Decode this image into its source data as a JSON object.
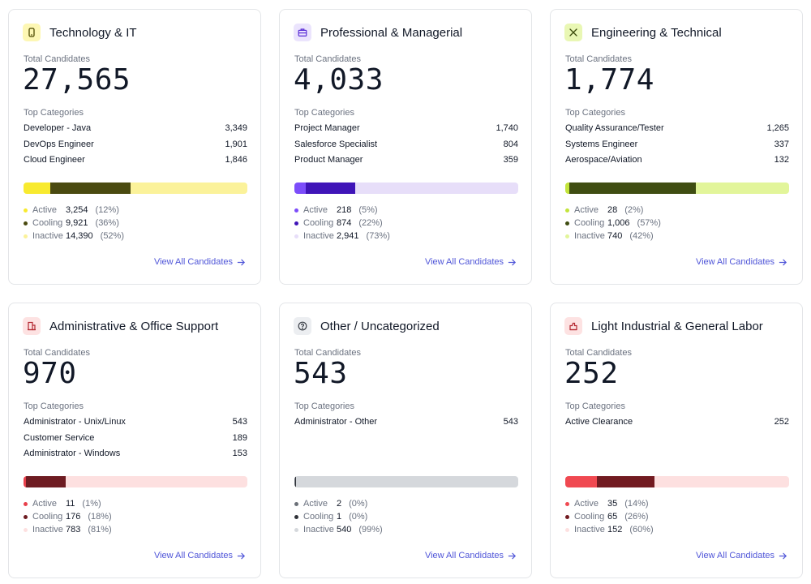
{
  "labels": {
    "total_candidates": "Total Candidates",
    "top_categories": "Top Categories",
    "view_all": "View All Candidates"
  },
  "cards": [
    {
      "title": "Technology & IT",
      "icon": "phone-icon",
      "icon_color": "#4d4a00",
      "icon_bg": "#fdf7b4",
      "total": "27,565",
      "categories": [
        {
          "name": "Developer - Java",
          "count": "3,349"
        },
        {
          "name": "DevOps Engineer",
          "count": "1,901"
        },
        {
          "name": "Cloud Engineer",
          "count": "1,846"
        }
      ],
      "status": [
        {
          "name": "Active",
          "count": "3,254",
          "pct": "(12%)",
          "fraction": 0.12,
          "color": "#f8ea2f"
        },
        {
          "name": "Cooling",
          "count": "9,921",
          "pct": "(36%)",
          "fraction": 0.36,
          "color": "#4a4a10"
        },
        {
          "name": "Inactive",
          "count": "14,390",
          "pct": "(52%)",
          "fraction": 0.52,
          "color": "#fbf29a"
        }
      ]
    },
    {
      "title": "Professional & Managerial",
      "icon": "briefcase-icon",
      "icon_color": "#5b2fd6",
      "icon_bg": "#ebe4fd",
      "total": "4,033",
      "categories": [
        {
          "name": "Project Manager",
          "count": "1,740"
        },
        {
          "name": "Salesforce Specialist",
          "count": "804"
        },
        {
          "name": "Product Manager",
          "count": "359"
        }
      ],
      "status": [
        {
          "name": "Active",
          "count": "218",
          "pct": "(5%)",
          "fraction": 0.05,
          "color": "#7c4dfa"
        },
        {
          "name": "Cooling",
          "count": "874",
          "pct": "(22%)",
          "fraction": 0.22,
          "color": "#3f14b8"
        },
        {
          "name": "Inactive",
          "count": "2,941",
          "pct": "(73%)",
          "fraction": 0.73,
          "color": "#e7def9"
        }
      ]
    },
    {
      "title": "Engineering & Technical",
      "icon": "tools-icon",
      "icon_color": "#3b4a0b",
      "icon_bg": "#e9f7b4",
      "total": "1,774",
      "categories": [
        {
          "name": "Quality Assurance/Tester",
          "count": "1,265"
        },
        {
          "name": "Systems Engineer",
          "count": "337"
        },
        {
          "name": "Aerospace/Aviation",
          "count": "132"
        }
      ],
      "status": [
        {
          "name": "Active",
          "count": "28",
          "pct": "(2%)",
          "fraction": 0.02,
          "color": "#c3e43c"
        },
        {
          "name": "Cooling",
          "count": "1,006",
          "pct": "(57%)",
          "fraction": 0.57,
          "color": "#3f4d12"
        },
        {
          "name": "Inactive",
          "count": "740",
          "pct": "(42%)",
          "fraction": 0.42,
          "color": "#e2f59a"
        }
      ]
    },
    {
      "title": "Administrative & Office Support",
      "icon": "building-icon",
      "icon_color": "#b3262f",
      "icon_bg": "#fde2e2",
      "total": "970",
      "categories": [
        {
          "name": "Administrator - Unix/Linux",
          "count": "543"
        },
        {
          "name": "Customer Service",
          "count": "189"
        },
        {
          "name": "Administrator - Windows",
          "count": "153"
        }
      ],
      "status": [
        {
          "name": "Active",
          "count": "11",
          "pct": "(1%)",
          "fraction": 0.01,
          "color": "#e8404b"
        },
        {
          "name": "Cooling",
          "count": "176",
          "pct": "(18%)",
          "fraction": 0.18,
          "color": "#6e1c22"
        },
        {
          "name": "Inactive",
          "count": "783",
          "pct": "(81%)",
          "fraction": 0.81,
          "color": "#fde0e0"
        }
      ]
    },
    {
      "title": "Other / Uncategorized",
      "icon": "question-circle-icon",
      "icon_color": "#3a3f47",
      "icon_bg": "#eceef1",
      "total": "543",
      "categories": [
        {
          "name": "Administrator - Other",
          "count": "543"
        }
      ],
      "status": [
        {
          "name": "Active",
          "count": "2",
          "pct": "(0%)",
          "fraction": 0.004,
          "color": "#6b7078"
        },
        {
          "name": "Cooling",
          "count": "1",
          "pct": "(0%)",
          "fraction": 0.002,
          "color": "#2f3238"
        },
        {
          "name": "Inactive",
          "count": "540",
          "pct": "(99%)",
          "fraction": 0.994,
          "color": "#d5d8dc"
        }
      ]
    },
    {
      "title": "Light Industrial & General Labor",
      "icon": "tool-box-icon",
      "icon_color": "#b3262f",
      "icon_bg": "#fde2e2",
      "total": "252",
      "categories": [
        {
          "name": "Active Clearance",
          "count": "252"
        }
      ],
      "status": [
        {
          "name": "Active",
          "count": "35",
          "pct": "(14%)",
          "fraction": 0.14,
          "color": "#f04951"
        },
        {
          "name": "Cooling",
          "count": "65",
          "pct": "(26%)",
          "fraction": 0.26,
          "color": "#721b21"
        },
        {
          "name": "Inactive",
          "count": "152",
          "pct": "(60%)",
          "fraction": 0.6,
          "color": "#fde0e0"
        }
      ]
    }
  ]
}
